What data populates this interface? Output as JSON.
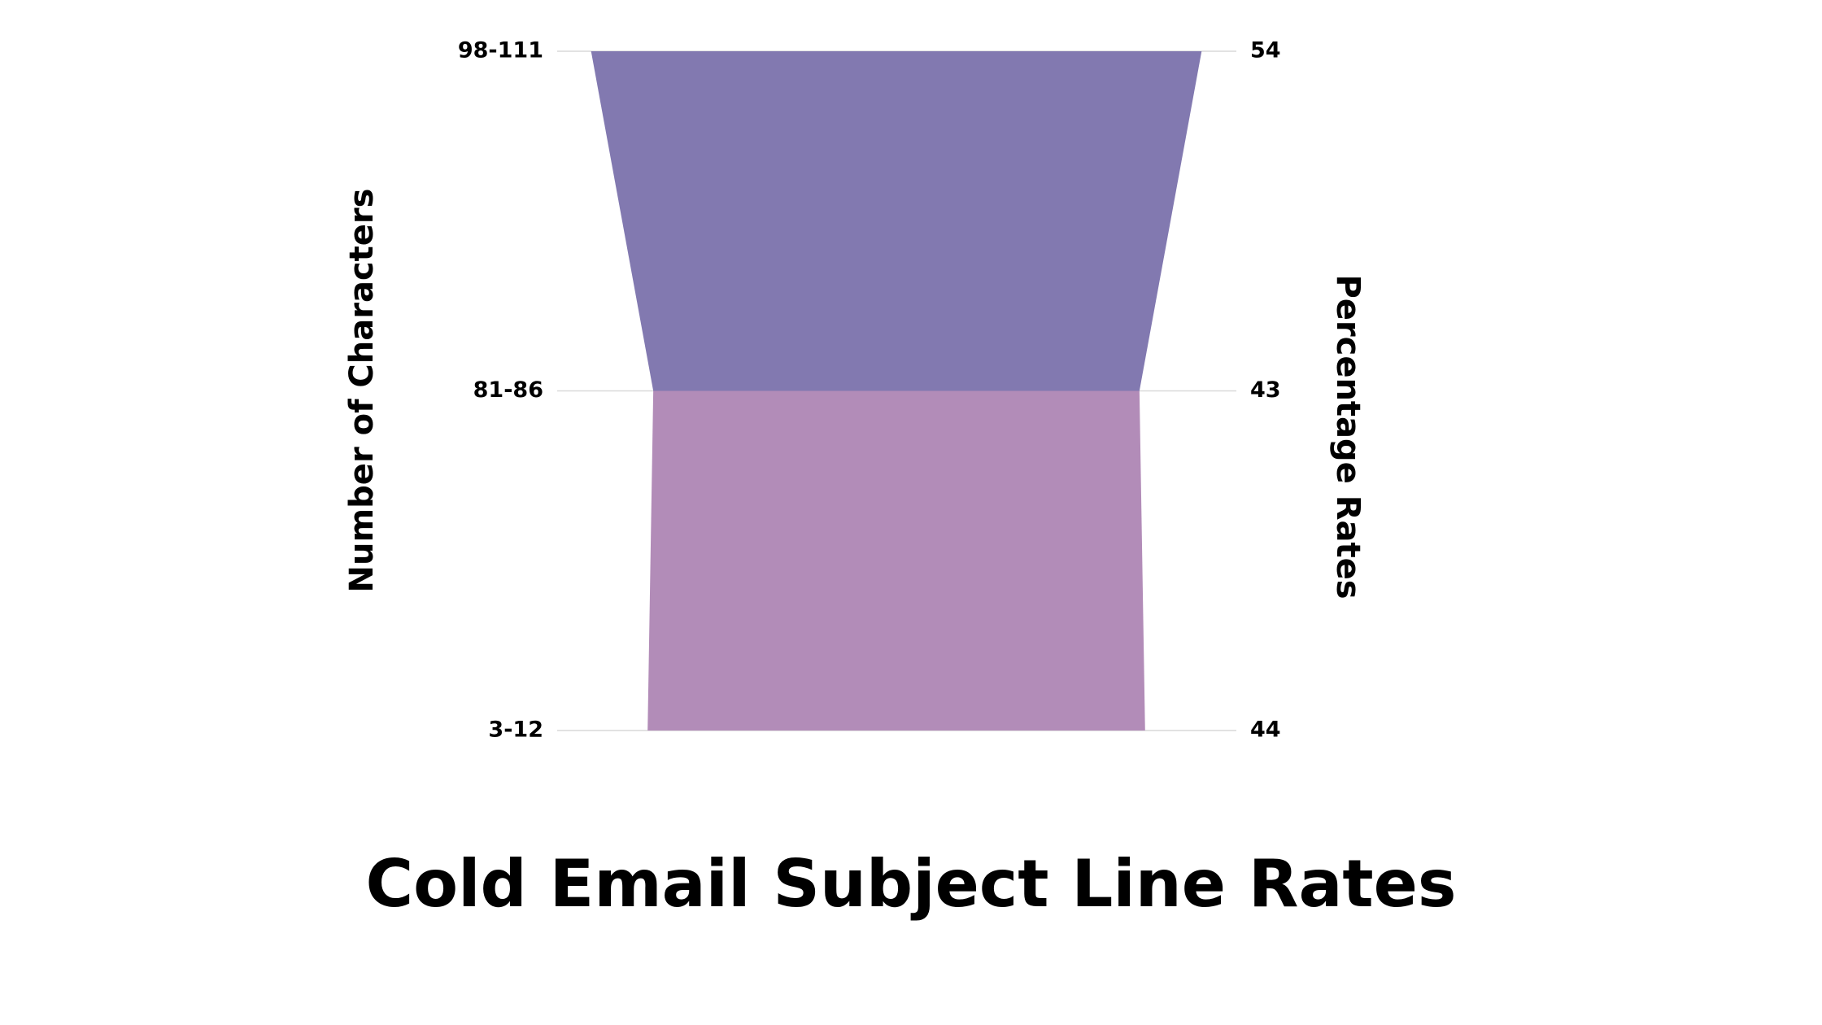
{
  "chart_data": {
    "type": "funnel",
    "title": "Cold Email Subject Line Rates",
    "y_label": "Number of Characters",
    "y2_label": "Percentage Rates",
    "categories": [
      "98-111",
      "81-86",
      "3-12"
    ],
    "values": [
      54,
      43,
      44
    ],
    "segment_colors": [
      "#8279b0",
      "#b28cb8"
    ],
    "grid": true
  }
}
